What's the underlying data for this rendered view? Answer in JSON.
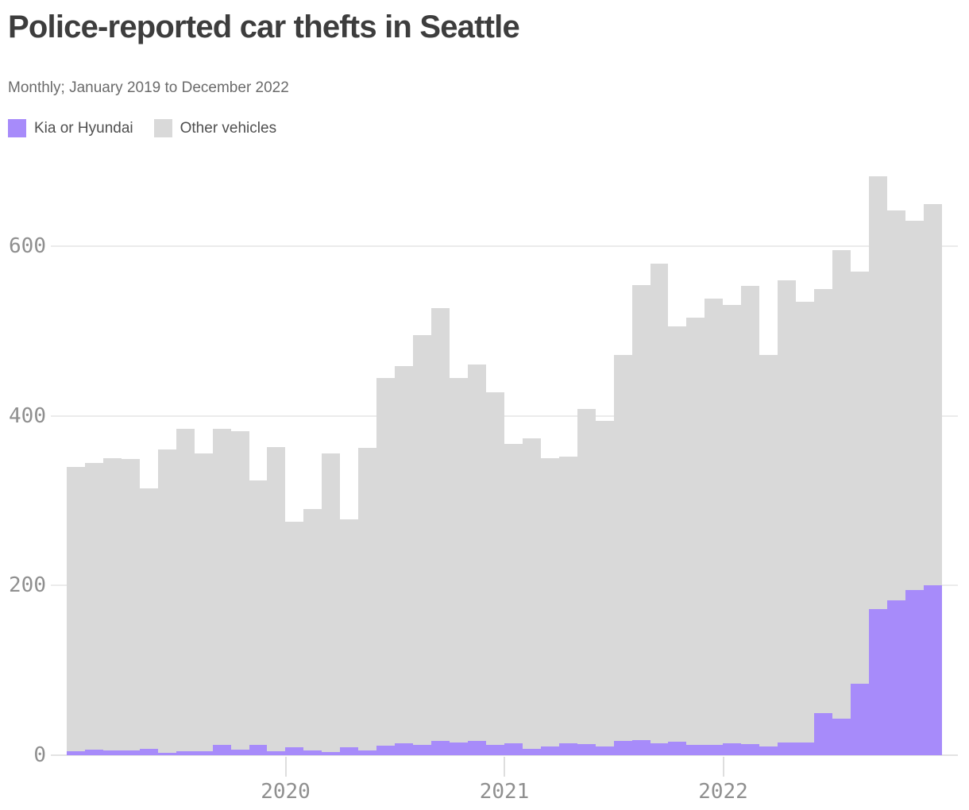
{
  "header": {
    "title": "Police-reported car thefts in Seattle",
    "subtitle": "Monthly; January 2019 to December 2022"
  },
  "legend": {
    "items": [
      {
        "label": "Kia or Hyundai",
        "color": "#a78bfa"
      },
      {
        "label": "Other vehicles",
        "color": "#d9d9d9"
      }
    ]
  },
  "chart_data": {
    "type": "bar",
    "stacked": true,
    "title": "Police-reported car thefts in Seattle",
    "subtitle": "Monthly; January 2019 to December 2022",
    "xlabel": "",
    "ylabel": "",
    "ylim": [
      0,
      700
    ],
    "yticks": [
      0,
      200,
      400,
      600
    ],
    "grid": "horizontal",
    "legend_position": "top-left",
    "categories": [
      "Jan 2019",
      "Feb 2019",
      "Mar 2019",
      "Apr 2019",
      "May 2019",
      "Jun 2019",
      "Jul 2019",
      "Aug 2019",
      "Sep 2019",
      "Oct 2019",
      "Nov 2019",
      "Dec 2019",
      "Jan 2020",
      "Feb 2020",
      "Mar 2020",
      "Apr 2020",
      "May 2020",
      "Jun 2020",
      "Jul 2020",
      "Aug 2020",
      "Sep 2020",
      "Oct 2020",
      "Nov 2020",
      "Dec 2020",
      "Jan 2021",
      "Feb 2021",
      "Mar 2021",
      "Apr 2021",
      "May 2021",
      "Jun 2021",
      "Jul 2021",
      "Aug 2021",
      "Sep 2021",
      "Oct 2021",
      "Nov 2021",
      "Dec 2021",
      "Jan 2022",
      "Feb 2022",
      "Mar 2022",
      "Apr 2022",
      "May 2022",
      "Jun 2022",
      "Jul 2022",
      "Aug 2022",
      "Sep 2022",
      "Oct 2022",
      "Nov 2022",
      "Dec 2022"
    ],
    "xticks": [
      {
        "label": "2020",
        "month_index": 12
      },
      {
        "label": "2021",
        "month_index": 24
      },
      {
        "label": "2022",
        "month_index": 36
      }
    ],
    "series": [
      {
        "name": "Kia or Hyundai",
        "color": "#a78bfa",
        "values": [
          5,
          7,
          6,
          6,
          8,
          3,
          5,
          5,
          12,
          7,
          12,
          5,
          9,
          6,
          4,
          9,
          6,
          11,
          14,
          12,
          17,
          15,
          17,
          12,
          14,
          8,
          10,
          14,
          13,
          10,
          17,
          18,
          14,
          16,
          12,
          12,
          14,
          13,
          10,
          15,
          15,
          50,
          43,
          84,
          172,
          183,
          195,
          200
        ]
      },
      {
        "name": "Other vehicles",
        "color": "#d9d9d9",
        "values": [
          335,
          338,
          344,
          343,
          307,
          358,
          380,
          351,
          373,
          375,
          312,
          358,
          266,
          284,
          352,
          269,
          356,
          434,
          445,
          483,
          510,
          430,
          444,
          416,
          353,
          366,
          340,
          338,
          395,
          384,
          455,
          536,
          566,
          490,
          504,
          526,
          517,
          540,
          462,
          545,
          520,
          500,
          553,
          486,
          511,
          459,
          435,
          450
        ]
      }
    ]
  }
}
